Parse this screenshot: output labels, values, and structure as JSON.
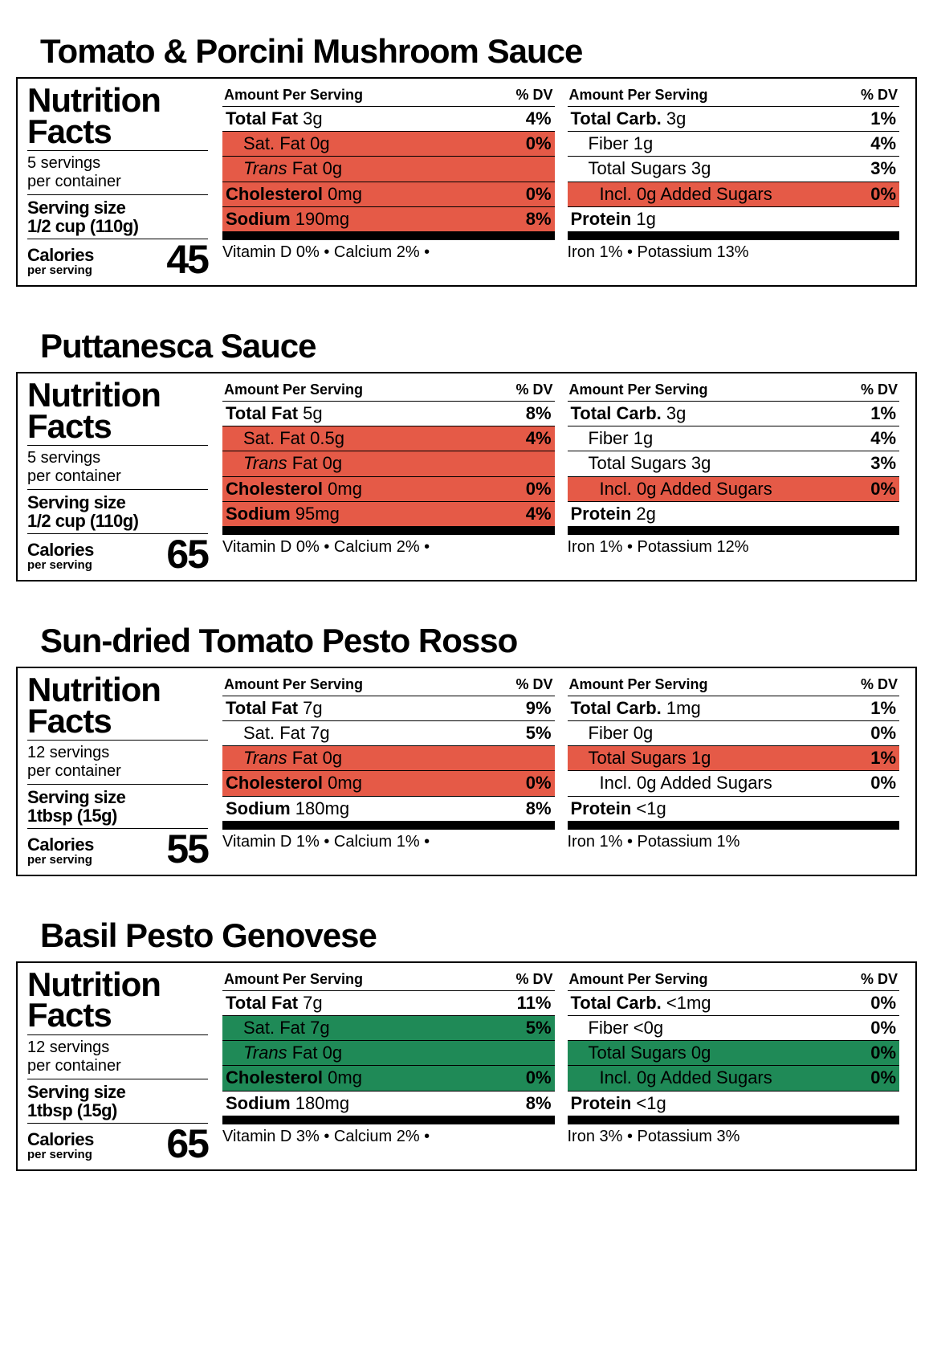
{
  "labels": {
    "nutrition_facts": "Nutrition Facts",
    "per_container": "per container",
    "serving_size": "Serving size",
    "calories": "Calories",
    "per_serving": "per serving",
    "amount_per_serving": "Amount Per Serving",
    "pct_dv": "% DV"
  },
  "colors": {
    "red": "#e55a47",
    "green": "#1f8a57"
  },
  "products": [
    {
      "title": "Tomato & Porcini Mushroom Sauce",
      "servings": "5 servings",
      "serving_size": "1/2 cup (110g)",
      "calories": "45",
      "col1": [
        {
          "bold": "Total Fat",
          "value": "3g",
          "dv": "4%",
          "hl": null,
          "indent": 0
        },
        {
          "label": "Sat. Fat 0g",
          "dv": "0%",
          "hl": "red",
          "indent": 1
        },
        {
          "italic": "Trans",
          "label_after": " Fat 0g",
          "dv": "",
          "hl": "red",
          "indent": 1
        },
        {
          "bold": "Cholesterol",
          "value": "0mg",
          "dv": "0%",
          "hl": "red",
          "indent": 0
        },
        {
          "bold": "Sodium",
          "value": "190mg",
          "dv": "8%",
          "hl": "red",
          "indent": 0
        }
      ],
      "col2": [
        {
          "bold": "Total Carb.",
          "value": "3g",
          "dv": "1%",
          "hl": null,
          "indent": 0
        },
        {
          "label": "Fiber 1g",
          "dv": "4%",
          "hl": null,
          "indent": 1
        },
        {
          "label": "Total Sugars 3g",
          "dv": "3%",
          "hl": null,
          "indent": 1
        },
        {
          "label": "Incl. 0g Added Sugars",
          "dv": "0%",
          "hl": "red",
          "indent": 2
        },
        {
          "bold": "Protein",
          "value": "1g",
          "dv": "",
          "hl": null,
          "indent": 0
        }
      ],
      "footer1": "Vitamin D 0%   •  Calcium 2%   •",
      "footer2": "Iron 1%   •   Potassium 13%"
    },
    {
      "title": "Puttanesca Sauce",
      "servings": "5 servings",
      "serving_size": "1/2 cup (110g)",
      "calories": "65",
      "col1": [
        {
          "bold": "Total Fat",
          "value": "5g",
          "dv": "8%",
          "hl": null,
          "indent": 0
        },
        {
          "label": "Sat. Fat 0.5g",
          "dv": "4%",
          "hl": "red",
          "indent": 1
        },
        {
          "italic": "Trans",
          "label_after": " Fat 0g",
          "dv": "",
          "hl": "red",
          "indent": 1
        },
        {
          "bold": "Cholesterol",
          "value": "0mg",
          "dv": "0%",
          "hl": "red",
          "indent": 0
        },
        {
          "bold": "Sodium",
          "value": "95mg",
          "dv": "4%",
          "hl": "red",
          "indent": 0
        }
      ],
      "col2": [
        {
          "bold": "Total Carb.",
          "value": "3g",
          "dv": "1%",
          "hl": null,
          "indent": 0
        },
        {
          "label": "Fiber 1g",
          "dv": "4%",
          "hl": null,
          "indent": 1
        },
        {
          "label": "Total Sugars 3g",
          "dv": "3%",
          "hl": null,
          "indent": 1
        },
        {
          "label": "Incl. 0g Added Sugars",
          "dv": "0%",
          "hl": "red",
          "indent": 2
        },
        {
          "bold": "Protein",
          "value": "2g",
          "dv": "",
          "hl": null,
          "indent": 0
        }
      ],
      "footer1": "Vitamin D 0%   •  Calcium 2%   •",
      "footer2": "Iron 1%   •   Potassium 12%"
    },
    {
      "title": "Sun-dried Tomato Pesto Rosso",
      "servings": "12 servings",
      "serving_size": "1tbsp (15g)",
      "calories": "55",
      "col1": [
        {
          "bold": "Total Fat",
          "value": "7g",
          "dv": "9%",
          "hl": null,
          "indent": 0
        },
        {
          "label": "Sat. Fat 7g",
          "dv": "5%",
          "hl": null,
          "indent": 1
        },
        {
          "italic": "Trans",
          "label_after": " Fat 0g",
          "dv": "",
          "hl": "red",
          "indent": 1
        },
        {
          "bold": "Cholesterol",
          "value": "0mg",
          "dv": "0%",
          "hl": "red",
          "indent": 0
        },
        {
          "bold": "Sodium",
          "value": "180mg",
          "dv": "8%",
          "hl": null,
          "indent": 0
        }
      ],
      "col2": [
        {
          "bold": "Total Carb.",
          "value": "1mg",
          "dv": "1%",
          "hl": null,
          "indent": 0
        },
        {
          "label": "Fiber 0g",
          "dv": "0%",
          "hl": null,
          "indent": 1
        },
        {
          "label": "Total Sugars 1g",
          "dv": "1%",
          "hl": "red",
          "indent": 1
        },
        {
          "label": "Incl. 0g Added Sugars",
          "dv": "0%",
          "hl": null,
          "indent": 2
        },
        {
          "bold": "Protein",
          "value": "<1g",
          "dv": "",
          "hl": null,
          "indent": 0
        }
      ],
      "footer1": "Vitamin D 1%   •  Calcium 1%   •",
      "footer2": "Iron 1%   •   Potassium 1%"
    },
    {
      "title": "Basil Pesto Genovese",
      "servings": "12 servings",
      "serving_size": "1tbsp (15g)",
      "calories": "65",
      "col1": [
        {
          "bold": "Total Fat",
          "value": "7g",
          "dv": "11%",
          "hl": null,
          "indent": 0
        },
        {
          "label": "Sat. Fat 7g",
          "dv": "5%",
          "hl": "green",
          "indent": 1
        },
        {
          "italic": "Trans",
          "label_after": " Fat 0g",
          "dv": "",
          "hl": "green",
          "indent": 1
        },
        {
          "bold": "Cholesterol",
          "value": "0mg",
          "dv": "0%",
          "hl": "green",
          "indent": 0
        },
        {
          "bold": "Sodium",
          "value": "180mg",
          "dv": "8%",
          "hl": null,
          "indent": 0
        }
      ],
      "col2": [
        {
          "bold": "Total Carb.",
          "value": "<1mg",
          "dv": "0%",
          "hl": null,
          "indent": 0
        },
        {
          "label": "Fiber <0g",
          "dv": "0%",
          "hl": null,
          "indent": 1
        },
        {
          "label": "Total Sugars 0g",
          "dv": "0%",
          "hl": "green",
          "indent": 1
        },
        {
          "label": "Incl. 0g Added Sugars",
          "dv": "0%",
          "hl": "green",
          "indent": 2
        },
        {
          "bold": "Protein",
          "value": "<1g",
          "dv": "",
          "hl": null,
          "indent": 0
        }
      ],
      "footer1": "Vitamin D 3%   •  Calcium 2%   •",
      "footer2": "Iron 3%   •   Potassium 3%"
    }
  ]
}
